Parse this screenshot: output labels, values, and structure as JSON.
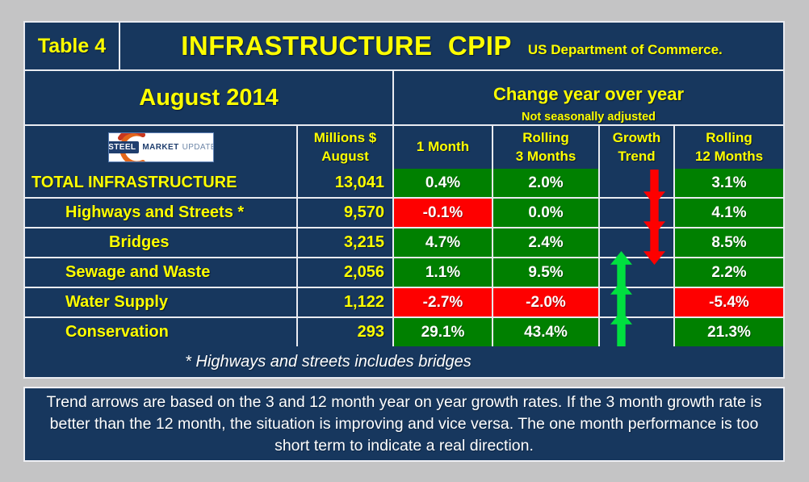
{
  "header": {
    "table_label": "Table 4",
    "title": "INFRASTRUCTURE  CPIP",
    "subtitle": "US Department of Commerce."
  },
  "period": {
    "label": "August 2014"
  },
  "change": {
    "title": "Change year over year",
    "note": "Not seasonally adjusted"
  },
  "logo": {
    "steel": "STEEL",
    "market": "MARKET",
    "update": "UPDATE"
  },
  "columns": {
    "millions": {
      "line1": "Millions $",
      "line2": "August"
    },
    "one_month": {
      "line1": "1 Month"
    },
    "rolling3": {
      "line1": "Rolling",
      "line2": "3 Months"
    },
    "growth": {
      "line1": "Growth",
      "line2": "Trend"
    },
    "rolling12": {
      "line1": "Rolling",
      "line2": "12 Months"
    }
  },
  "rows": [
    {
      "name": "TOTAL INFRASTRUCTURE",
      "indent": 0,
      "millions": "13,041",
      "m1": "0.4%",
      "m3": "2.0%",
      "trend": "down",
      "m12": "3.1%"
    },
    {
      "name": "Highways and Streets *",
      "indent": 1,
      "millions": "9,570",
      "m1": "-0.1%",
      "m3": "0.0%",
      "trend": "down",
      "m12": "4.1%"
    },
    {
      "name": "Bridges",
      "indent": 2,
      "millions": "3,215",
      "m1": "4.7%",
      "m3": "2.4%",
      "trend": "down",
      "m12": "8.5%"
    },
    {
      "name": "Sewage and Waste",
      "indent": 1,
      "millions": "2,056",
      "m1": "1.1%",
      "m3": "9.5%",
      "trend": "up",
      "m12": "2.2%"
    },
    {
      "name": "Water Supply",
      "indent": 1,
      "millions": "1,122",
      "m1": "-2.7%",
      "m3": "-2.0%",
      "trend": "up",
      "m12": "-5.4%"
    },
    {
      "name": "Conservation",
      "indent": 1,
      "millions": "293",
      "m1": "29.1%",
      "m3": "43.4%",
      "trend": "up",
      "m12": "21.3%"
    }
  ],
  "notes": {
    "footnote": "* Highways and streets includes bridges",
    "trend_note": "Trend arrows are based on the 3 and 12 month year on year growth rates. If the 3 month growth rate is better than the 12 month, the situation is improving and vice versa. The one month performance is too short term to indicate a real direction."
  },
  "colors": {
    "navy": "#17375E",
    "yellow": "#FFFF00",
    "positive_green": "#008000",
    "negative_red": "#FE0000",
    "arrow_up_green": "#00DF3F",
    "arrow_down_red": "#FE0000",
    "page_gray": "#C4C4C5"
  },
  "chart_data": {
    "type": "table",
    "title": "INFRASTRUCTURE CPIP",
    "subtitle": "US Department of Commerce.",
    "period": "August 2014",
    "group_header": "Change year over year",
    "group_subheader": "Not seasonally adjusted",
    "columns": [
      "Category",
      "Millions $ August",
      "1 Month",
      "Rolling 3 Months",
      "Growth Trend",
      "Rolling 12 Months"
    ],
    "rows": [
      [
        "TOTAL INFRASTRUCTURE",
        13041,
        "0.4%",
        "2.0%",
        "down",
        "3.1%"
      ],
      [
        "Highways and Streets *",
        9570,
        "-0.1%",
        "0.0%",
        "down",
        "4.1%"
      ],
      [
        "Bridges",
        3215,
        "4.7%",
        "2.4%",
        "down",
        "8.5%"
      ],
      [
        "Sewage and Waste",
        2056,
        "1.1%",
        "9.5%",
        "up",
        "2.2%"
      ],
      [
        "Water Supply",
        1122,
        "-2.7%",
        "-2.0%",
        "up",
        "-5.4%"
      ],
      [
        "Conservation",
        293,
        "29.1%",
        "43.4%",
        "up",
        "21.3%"
      ]
    ],
    "cell_color_rule": "green background = positive value, red background = negative value",
    "footnote": "* Highways and streets includes bridges"
  }
}
